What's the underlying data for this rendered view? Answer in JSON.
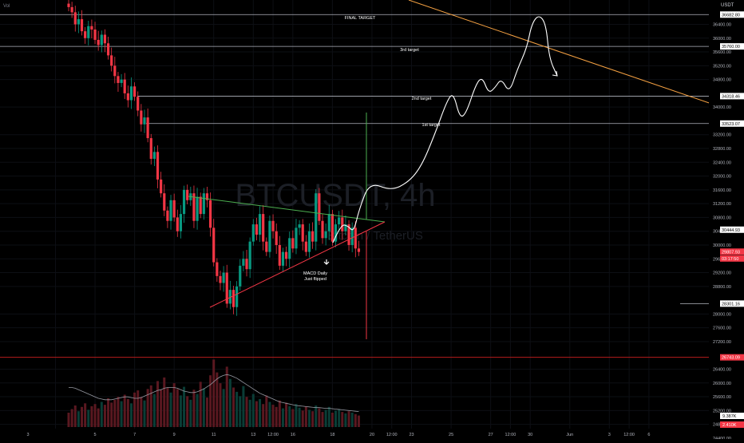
{
  "top_left": {
    "indicator": "Vol"
  },
  "price_scale": {
    "currency": "USDT",
    "ticks": [
      36400,
      36000,
      35600,
      35200,
      34800,
      34000,
      33200,
      32800,
      32400,
      32000,
      31600,
      31200,
      30800,
      30400,
      30000,
      29600,
      29200,
      28800,
      28000,
      27600,
      27200,
      26400,
      26000,
      25600,
      25200,
      24800,
      24400
    ],
    "tick_labels": [
      "36400.00",
      "36000.00",
      "35600.00",
      "35200.00",
      "34800.00",
      "34000.00",
      "33200.00",
      "32800.00",
      "32400.00",
      "32000.00",
      "31600.00",
      "31200.00",
      "30800.00",
      "30400.00",
      "30000.00",
      "29600.00",
      "29200.00",
      "28800.00",
      "28000.00",
      "27600.00",
      "27200.00",
      "26400.00",
      "26000.00",
      "25600.00",
      "25200.00",
      "24800.00",
      "24400.00"
    ],
    "badges": [
      {
        "label": "36682.80",
        "value": 36682.8,
        "style": "level"
      },
      {
        "label": "35760.00",
        "value": 35760,
        "style": "level"
      },
      {
        "label": "34318.46",
        "value": 34318.46,
        "style": "level"
      },
      {
        "label": "33523.07",
        "value": 33523.07,
        "style": "level"
      },
      {
        "label": "30444.93",
        "value": 30444.93,
        "style": "level"
      },
      {
        "label": "29807.93",
        "value": 29807.93,
        "style": "last"
      },
      {
        "label": "03:17:50",
        "value": 29610,
        "style": "last"
      },
      {
        "label": "28301.16",
        "value": 28301.16,
        "style": "level"
      },
      {
        "label": "26743.09",
        "value": 26743.09,
        "style": "red"
      }
    ],
    "volume_badges": [
      "9.387K",
      "2.410K"
    ]
  },
  "time_axis": {
    "labels": [
      "3",
      "5",
      "7",
      "9",
      "11",
      "13",
      "12:00",
      "16",
      "18",
      "20",
      "12:00",
      "23",
      "25",
      "27",
      "12:00",
      "30",
      "Jun",
      "3",
      "12:00",
      "6"
    ],
    "label_bar_index": [
      -4,
      8,
      20,
      32,
      44,
      56,
      62,
      68,
      80,
      92,
      98,
      104,
      116,
      128,
      134,
      140,
      152,
      164,
      170,
      176
    ]
  },
  "watermark": {
    "symbol": "BTCUSDT, 4h",
    "name": "Bitcoin / TetherUS"
  },
  "annotations": {
    "final_target": "FINAL TARGET",
    "third_target": "3rd target",
    "second_target": "2nd target",
    "first_target": "1st target",
    "macd_line1": "MACD Daily",
    "macd_line2": "Just flipped"
  },
  "colors": {
    "up": "#089981",
    "down": "#f23645",
    "trendline_orange": "#f5a142",
    "triangle_upper": "#4caf50",
    "triangle_lower": "#f23645",
    "projection": "#ffffff",
    "red_level": "#b71c1c"
  },
  "chart_data": {
    "type": "candlestick",
    "symbol": "BTCUSDT",
    "timeframe": "4h",
    "horizontal_levels": [
      {
        "label": "FINAL TARGET",
        "price": 36682.8
      },
      {
        "label": "3rd target",
        "price": 35760
      },
      {
        "label": "2nd target",
        "price": 34318.46
      },
      {
        "label": "1st target",
        "price": 33523.07
      },
      {
        "label": "",
        "price": 28301.16
      },
      {
        "label": "",
        "price": 26743.09
      }
    ],
    "ohlc_closes": [
      36900,
      36750,
      36400,
      36550,
      36200,
      36000,
      36350,
      36250,
      35950,
      35800,
      36100,
      35850,
      35500,
      35200,
      34900,
      34700,
      34800,
      34400,
      34200,
      34600,
      34300,
      33900,
      33500,
      33700,
      33100,
      32500,
      32700,
      31900,
      31500,
      31000,
      30700,
      31300,
      30800,
      30400,
      30900,
      31600,
      31300,
      31500,
      30700,
      31400,
      30900,
      31500,
      31300,
      30500,
      29500,
      29100,
      28900,
      29200,
      28300,
      28700,
      28200,
      28800,
      29400,
      29600,
      29300,
      30100,
      30600,
      30300,
      30900,
      30100,
      29800,
      30700,
      30400,
      30000,
      29400,
      29800,
      29600,
      30200,
      29900,
      30500,
      30600,
      30100,
      29800,
      30400,
      30100,
      31500,
      30700,
      30200,
      30400,
      30900,
      30100,
      30600,
      30800,
      30400,
      30600,
      30000,
      30500,
      29900,
      29800
    ],
    "volumes": [
      2,
      2.5,
      3,
      2.2,
      2.8,
      3.3,
      2.4,
      2.9,
      3.2,
      2.6,
      3.5,
      3.1,
      4,
      3.4,
      3.8,
      4.2,
      3.6,
      4.5,
      3.9,
      3.3,
      4.8,
      5.1,
      4.2,
      3.7,
      5.3,
      5.8,
      4.6,
      6.4,
      5.2,
      6.9,
      5.5,
      4.8,
      6.1,
      5.3,
      4.4,
      5.6,
      4.3,
      3.8,
      5.2,
      4.6,
      6.3,
      5.4,
      4.1,
      7.2,
      9.4,
      7.6,
      6.1,
      5.3,
      8.4,
      6.7,
      5.5,
      4.9,
      4.3,
      5.7,
      4.2,
      3.8,
      4.6,
      3.6,
      3.9,
      3.2,
      4.4,
      3.5,
      3.1,
      2.8,
      3.7,
      2.6,
      3.4,
      2.9,
      2.5,
      3.2,
      2.7,
      2.3,
      2.9,
      2.4,
      2.2,
      3,
      2.6,
      2.1,
      2.4,
      2.8,
      2,
      2.3,
      2.5,
      2.1,
      1.9,
      2.2,
      2,
      1.8,
      1.6
    ],
    "volume_ma": [
      5.5,
      5.5,
      5.4,
      5.2,
      5,
      4.8,
      4.6,
      4.4,
      4.2,
      4,
      3.9,
      3.8,
      3.8,
      3.8,
      3.9,
      4,
      4.1,
      4.2,
      4.2,
      4.1,
      4,
      4,
      4.1,
      4.3,
      4.5,
      4.7,
      4.9,
      5.1,
      5.2,
      5.4,
      5.5,
      5.5,
      5.5,
      5.4,
      5.2,
      5,
      4.9,
      4.8,
      4.8,
      4.9,
      5.1,
      5.3,
      5.6,
      5.9,
      6.3,
      6.7,
      7,
      7.2,
      7.3,
      7.2,
      7,
      6.8,
      6.5,
      6.2,
      5.9,
      5.6,
      5.3,
      5,
      4.7,
      4.5,
      4.3,
      4.1,
      3.9,
      3.7,
      3.5,
      3.4,
      3.3,
      3.2,
      3.1,
      3,
      2.95,
      2.9,
      2.85,
      2.8,
      2.75,
      2.7,
      2.7,
      2.65,
      2.6,
      2.6,
      2.55,
      2.5,
      2.45,
      2.4,
      2.35,
      2.3,
      2.25,
      2.2,
      2.15
    ],
    "projection_path": [
      [
        91,
        30500
      ],
      [
        92,
        31400
      ],
      [
        94,
        31700
      ],
      [
        96,
        31600
      ],
      [
        98,
        31800
      ],
      [
        100,
        32500
      ],
      [
        101,
        32900
      ],
      [
        103,
        33400
      ],
      [
        104,
        33700
      ],
      [
        106,
        34200
      ],
      [
        107,
        34300
      ],
      [
        108,
        33900
      ],
      [
        109,
        33400
      ],
      [
        110,
        33500
      ],
      [
        111,
        34300
      ],
      [
        113,
        34800
      ],
      [
        114,
        35000
      ],
      [
        115,
        34600
      ],
      [
        116,
        34500
      ],
      [
        117,
        34700
      ],
      [
        118,
        35000
      ],
      [
        119,
        34600
      ],
      [
        120,
        34400
      ],
      [
        121,
        34700
      ],
      [
        122,
        35300
      ],
      [
        123,
        35900
      ],
      [
        124,
        36300
      ],
      [
        125,
        36600
      ],
      [
        126,
        36700
      ],
      [
        127,
        36500
      ],
      [
        128,
        36000
      ],
      [
        129,
        35700
      ],
      [
        130,
        35100
      ]
    ],
    "trendlines": [
      {
        "name": "descending",
        "from": [
          89,
          37300
        ],
        "to": [
          182,
          34000
        ]
      },
      {
        "name": "triangle-upper",
        "from": [
          52,
          31200
        ],
        "to": [
          99,
          30550
        ]
      },
      {
        "name": "triangle-lower",
        "from": [
          56,
          28100
        ],
        "to": [
          99,
          30550
        ]
      }
    ]
  }
}
